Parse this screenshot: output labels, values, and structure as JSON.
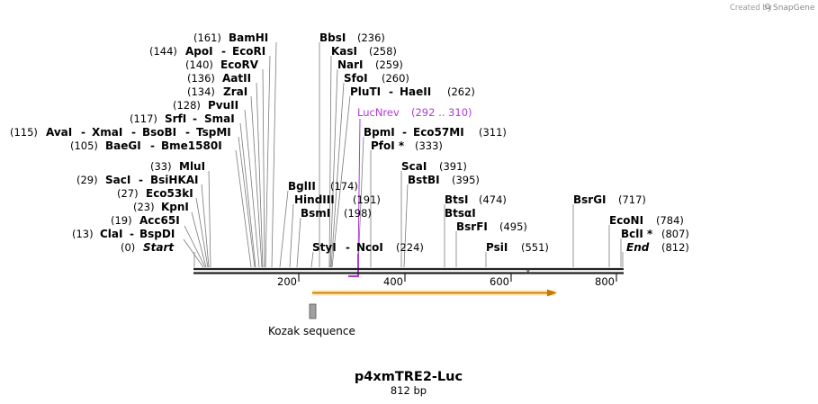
{
  "credit": {
    "prefix": "Created by",
    "brand": "SnapGene"
  },
  "map": {
    "name": "p4xmTRE2-Luc",
    "length_label": "812 bp",
    "length": 812,
    "ruler_ticks": [
      "200",
      "400",
      "600",
      "800"
    ],
    "primer": {
      "name": "LucNrev",
      "range": "(292 .. 310)",
      "color": "#b03ad9"
    },
    "features": [
      {
        "name": "",
        "type": "orf-arrow",
        "color": "#f5b428"
      },
      {
        "name": "Kozak sequence",
        "type": "box",
        "color": "#9a9a9a"
      }
    ],
    "sites": [
      {
        "pos": "(0)",
        "name": "Start",
        "italic": true
      },
      {
        "pos": "(13)",
        "name": "ClaI",
        "alt": "BspDI"
      },
      {
        "pos": "(19)",
        "name": "Acc65I"
      },
      {
        "pos": "(23)",
        "name": "KpnI"
      },
      {
        "pos": "(27)",
        "name": "Eco53kI"
      },
      {
        "pos": "(29)",
        "name": "SacI",
        "alt": "BsiHKAI"
      },
      {
        "pos": "(33)",
        "name": "MluI"
      },
      {
        "pos": "(105)",
        "name": "BaeGI",
        "alt": "Bme1580I"
      },
      {
        "pos": "(115)",
        "name": "AvaI",
        "alt": "XmaI",
        "alt2": "BsoBI",
        "alt3": "TspMI"
      },
      {
        "pos": "(117)",
        "name": "SrfI",
        "alt": "SmaI"
      },
      {
        "pos": "(128)",
        "name": "PvuII"
      },
      {
        "pos": "(134)",
        "name": "ZraI"
      },
      {
        "pos": "(136)",
        "name": "AatII"
      },
      {
        "pos": "(140)",
        "name": "EcoRV"
      },
      {
        "pos": "(144)",
        "name": "ApoI",
        "alt": "EcoRI"
      },
      {
        "pos": "(161)",
        "name": "BamHI"
      },
      {
        "pos": "(174)",
        "name": "BglII"
      },
      {
        "pos": "(191)",
        "name": "HindIII"
      },
      {
        "pos": "(198)",
        "name": "BsmI"
      },
      {
        "pos": "(224)",
        "name": "StyI",
        "alt": "NcoI"
      },
      {
        "pos": "(236)",
        "name": "BbsI"
      },
      {
        "pos": "(258)",
        "name": "KasI"
      },
      {
        "pos": "(259)",
        "name": "NarI"
      },
      {
        "pos": "(260)",
        "name": "SfoI"
      },
      {
        "pos": "(262)",
        "name": "PluTI",
        "alt": "HaeII"
      },
      {
        "pos": "(311)",
        "name": "BpmI",
        "alt": "Eco57MI"
      },
      {
        "pos": "(333)",
        "name": "PfoI *"
      },
      {
        "pos": "(391)",
        "name": "ScaI"
      },
      {
        "pos": "(395)",
        "name": "BstBI"
      },
      {
        "pos": "(474)",
        "name": "BtsI",
        "alt": "BtsαI"
      },
      {
        "pos": "(495)",
        "name": "BsrFI"
      },
      {
        "pos": "(551)",
        "name": "PsiI"
      },
      {
        "pos": "(717)",
        "name": "BsrGI"
      },
      {
        "pos": "(784)",
        "name": "EcoNI"
      },
      {
        "pos": "(807)",
        "name": "BclI *"
      },
      {
        "pos": "(812)",
        "name": "End",
        "italic": true
      }
    ]
  }
}
